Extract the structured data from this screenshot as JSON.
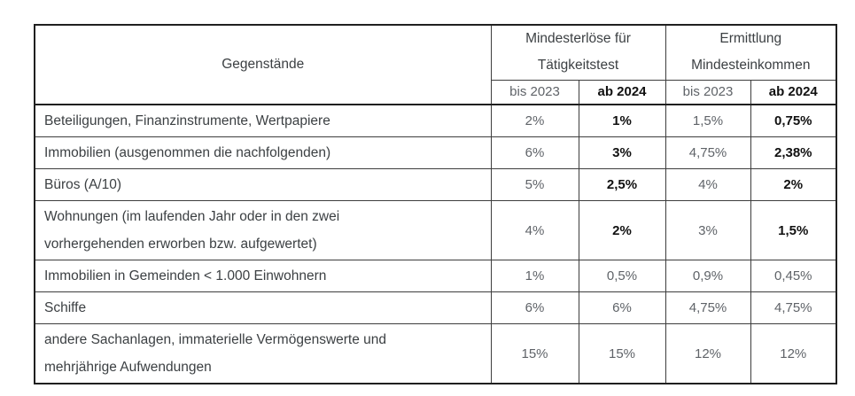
{
  "colors": {
    "background": "#ffffff",
    "border": "#3d3d3d",
    "border-strong": "#1f1f1f",
    "text-label": "#3c4043",
    "text-muted": "#5f6368",
    "text-emphasis": "#111111"
  },
  "table": {
    "header": {
      "objects": "Gegenstände",
      "group1_line1": "Mindesterlöse für",
      "group1_line2": "Tätigkeitstest",
      "group2_line1": "Ermittlung",
      "group2_line2": "Mindesteinkommen",
      "sub_headers": [
        "bis 2023",
        "ab 2024",
        "bis 2023",
        "ab 2024"
      ]
    },
    "rows": [
      {
        "label": "Beteiligungen, Finanzinstrumente, Wertpapiere",
        "values": [
          "2%",
          "1%",
          "1,5%",
          "0,75%"
        ],
        "emphasized_new": true
      },
      {
        "label": "Immobilien (ausgenommen die nachfolgenden)",
        "values": [
          "6%",
          "3%",
          "4,75%",
          "2,38%"
        ],
        "emphasized_new": true
      },
      {
        "label": "Büros (A/10)",
        "values": [
          "5%",
          "2,5%",
          "4%",
          "2%"
        ],
        "emphasized_new": true
      },
      {
        "label": "Wohnungen (im laufenden Jahr oder in den zwei\nvorhergehenden erworben bzw. aufgewertet)",
        "values": [
          "4%",
          "2%",
          "3%",
          "1,5%"
        ],
        "emphasized_new": true
      },
      {
        "label": "Immobilien in Gemeinden < 1.000 Einwohnern",
        "values": [
          "1%",
          "0,5%",
          "0,9%",
          "0,45%"
        ],
        "emphasized_new": false
      },
      {
        "label": "Schiffe",
        "values": [
          "6%",
          "6%",
          "4,75%",
          "4,75%"
        ],
        "emphasized_new": false
      },
      {
        "label": "andere Sachanlagen, immaterielle Vermögenswerte und\nmehrjährige Aufwendungen",
        "values": [
          "15%",
          "15%",
          "12%",
          "12%"
        ],
        "emphasized_new": false
      }
    ]
  }
}
